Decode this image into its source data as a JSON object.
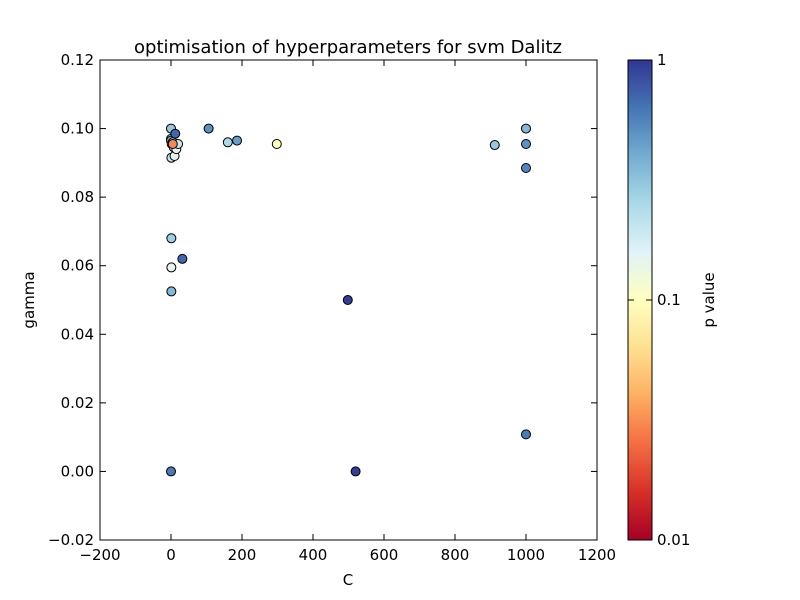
{
  "chart_data": {
    "type": "scatter",
    "title": "optimisation of hyperparameters for svm Dalitz",
    "xlabel": "C",
    "ylabel": "gamma",
    "xlim": [
      -200,
      1200
    ],
    "ylim": [
      -0.02,
      0.12
    ],
    "x_ticks": [
      -200,
      0,
      200,
      400,
      600,
      800,
      1000,
      1200
    ],
    "x_tick_labels": [
      "−200",
      "0",
      "200",
      "400",
      "600",
      "800",
      "1000",
      "1200"
    ],
    "y_ticks": [
      -0.02,
      0.0,
      0.02,
      0.04,
      0.06,
      0.08,
      0.1,
      0.12
    ],
    "y_tick_labels": [
      "−0.02",
      "0.00",
      "0.02",
      "0.04",
      "0.06",
      "0.08",
      "0.10",
      "0.12"
    ],
    "grid": false,
    "colorbar": {
      "label": "p value",
      "scale": "log",
      "range": [
        0.01,
        1
      ],
      "colormap": "RdYlBu",
      "ticks": [
        0.01,
        0.1,
        1
      ],
      "tick_labels": [
        "0.01",
        "0.1",
        "1"
      ]
    },
    "points": [
      {
        "x": 0,
        "y": 0.1,
        "p": 0.3
      },
      {
        "x": 0,
        "y": 0.097,
        "p": 0.25
      },
      {
        "x": 0,
        "y": 0.0965,
        "p": 0.4
      },
      {
        "x": 2,
        "y": 0.0955,
        "p": 0.12
      },
      {
        "x": 5,
        "y": 0.096,
        "p": 0.2
      },
      {
        "x": 8,
        "y": 0.0945,
        "p": 0.18
      },
      {
        "x": 1,
        "y": 0.0915,
        "p": 0.2
      },
      {
        "x": 10,
        "y": 0.092,
        "p": 0.15
      },
      {
        "x": 12,
        "y": 0.0985,
        "p": 0.7
      },
      {
        "x": 15,
        "y": 0.094,
        "p": 0.15
      },
      {
        "x": 20,
        "y": 0.0955,
        "p": 0.2
      },
      {
        "x": 5,
        "y": 0.0955,
        "p": 0.03
      },
      {
        "x": 106,
        "y": 0.1,
        "p": 0.5
      },
      {
        "x": 160,
        "y": 0.096,
        "p": 0.25
      },
      {
        "x": 186,
        "y": 0.0965,
        "p": 0.45
      },
      {
        "x": 298,
        "y": 0.0955,
        "p": 0.1
      },
      {
        "x": 912,
        "y": 0.0952,
        "p": 0.3
      },
      {
        "x": 1000,
        "y": 0.1,
        "p": 0.35
      },
      {
        "x": 1000,
        "y": 0.0955,
        "p": 0.5
      },
      {
        "x": 1000,
        "y": 0.0885,
        "p": 0.55
      },
      {
        "x": 1,
        "y": 0.068,
        "p": 0.28
      },
      {
        "x": 32,
        "y": 0.062,
        "p": 0.7
      },
      {
        "x": 1,
        "y": 0.0595,
        "p": 0.15
      },
      {
        "x": 1,
        "y": 0.0525,
        "p": 0.35
      },
      {
        "x": 498,
        "y": 0.05,
        "p": 0.95
      },
      {
        "x": 1000,
        "y": 0.0108,
        "p": 0.6
      },
      {
        "x": 0,
        "y": 0.0,
        "p": 0.6
      },
      {
        "x": 520,
        "y": 0.0,
        "p": 0.95
      }
    ]
  }
}
